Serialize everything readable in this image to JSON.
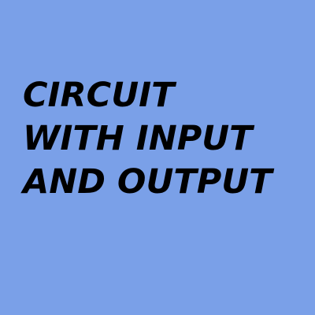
{
  "background_color": "#7aa0e8",
  "text_color": "#000000",
  "title": {
    "lines": [
      "CIRCUIT",
      "WITH INPUT",
      "AND OUTPUT"
    ]
  }
}
